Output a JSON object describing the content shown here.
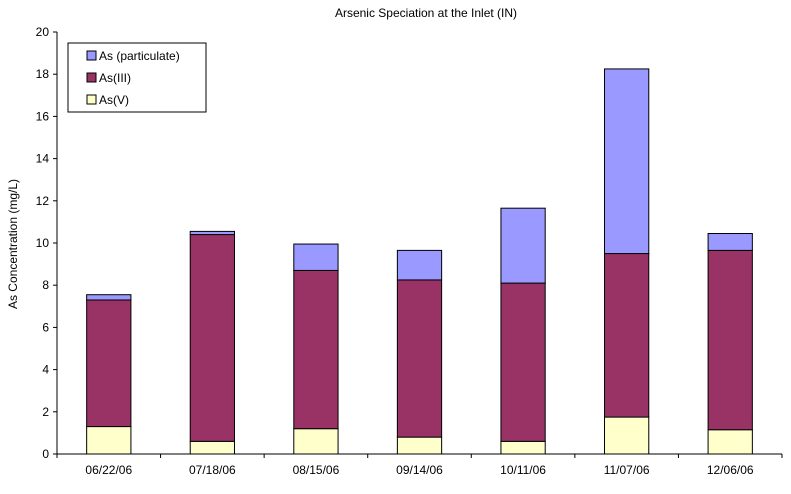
{
  "chart_data": {
    "type": "bar",
    "stacked": true,
    "title": "Arsenic Speciation at the Inlet (IN)",
    "xlabel": "",
    "ylabel": "As Concentration (mg/L)",
    "ylim": [
      0,
      20
    ],
    "ytick_step": 2,
    "grid": false,
    "legend_position": "top-left",
    "categories": [
      "06/22/06",
      "07/18/06",
      "08/15/06",
      "09/14/06",
      "10/11/06",
      "11/07/06",
      "12/06/06"
    ],
    "series": [
      {
        "name": "As(V)",
        "color": "#ffffcc",
        "values": [
          1.3,
          0.6,
          1.2,
          0.8,
          0.6,
          1.75,
          1.15
        ]
      },
      {
        "name": "As(III)",
        "color": "#993366",
        "values": [
          6.0,
          9.8,
          7.5,
          7.45,
          7.5,
          7.75,
          8.5
        ]
      },
      {
        "name": "As (particulate)",
        "color": "#9999ff",
        "values": [
          0.25,
          0.15,
          1.25,
          1.4,
          3.55,
          8.75,
          0.8
        ]
      }
    ],
    "legend_order": [
      "As (particulate)",
      "As(III)",
      "As(V)"
    ]
  }
}
